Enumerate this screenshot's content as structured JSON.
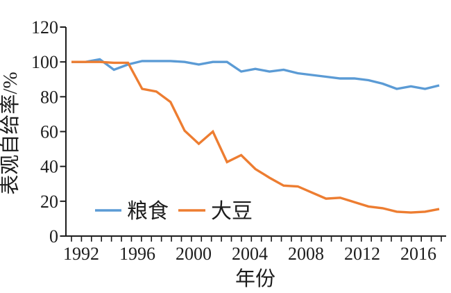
{
  "chart_data": {
    "type": "line",
    "title": "",
    "xlabel": "年份",
    "ylabel": "表观自给率/%",
    "xlim": [
      1992,
      2018
    ],
    "ylim": [
      0,
      120
    ],
    "yticks": [
      0,
      20,
      40,
      60,
      80,
      100,
      120
    ],
    "xtick_labels": [
      "1992",
      "1996",
      "2000",
      "2004",
      "2008",
      "2012",
      "2016"
    ],
    "x_minor_ticks": 38,
    "grid": false,
    "legend_position": "inside-bottom-left",
    "x": [
      1992,
      1993,
      1994,
      1995,
      1996,
      1997,
      1998,
      1999,
      2000,
      2001,
      2002,
      2003,
      2004,
      2005,
      2006,
      2007,
      2008,
      2009,
      2010,
      2011,
      2012,
      2013,
      2014,
      2015,
      2016,
      2017,
      2018
    ],
    "series": [
      {
        "key": "grain",
        "name": "粮食",
        "color": "#5B9BD5",
        "values": [
          100,
          100,
          101.5,
          95.5,
          98.5,
          100.5,
          100.5,
          100.5,
          100,
          98.5,
          100,
          100,
          94.5,
          96,
          94.5,
          95.5,
          93.5,
          92.5,
          91.5,
          90.5,
          90.5,
          89.5,
          87.5,
          84.5,
          86,
          84.5,
          86.5
        ]
      },
      {
        "key": "soybean",
        "name": "大豆",
        "color": "#ED7D31",
        "values": [
          100,
          100,
          100,
          99.5,
          99.5,
          84.5,
          83,
          77,
          60.5,
          53,
          60,
          42.5,
          46.5,
          38.5,
          33.5,
          29,
          28.5,
          25,
          21.5,
          22,
          19.5,
          17,
          16,
          14,
          13.5,
          14,
          15.5
        ]
      }
    ]
  },
  "legend": {
    "items": [
      {
        "label": "粮食",
        "color": "#5B9BD5"
      },
      {
        "label": "大豆",
        "color": "#ED7D31"
      }
    ]
  },
  "axis": {
    "color": "#1c1c1c"
  }
}
